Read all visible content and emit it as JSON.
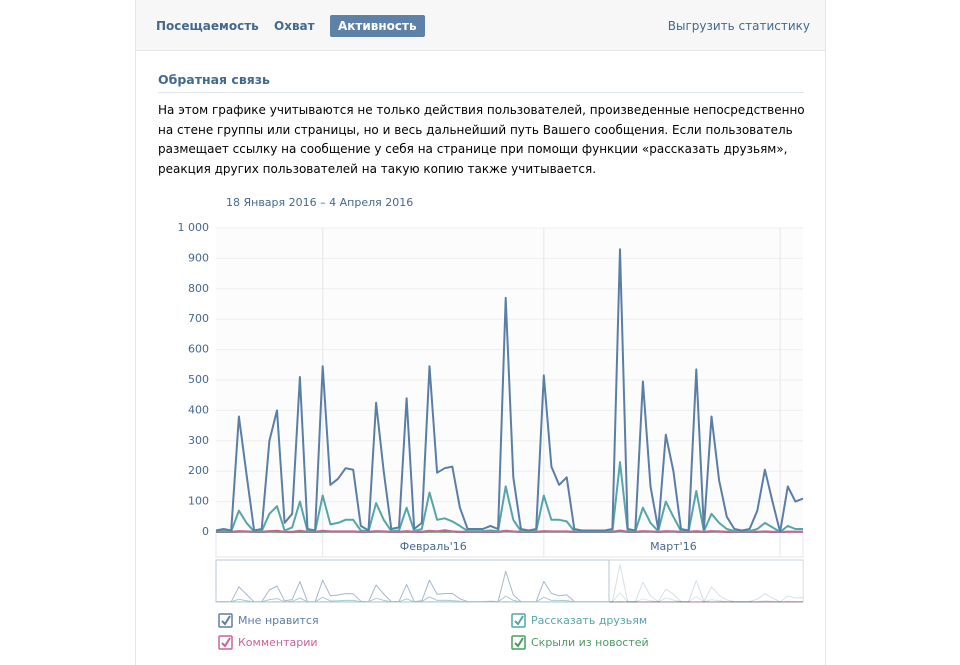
{
  "header": {
    "tabs": [
      "Посещаемость",
      "Охват",
      "Активность"
    ],
    "export": "Выгрузить статистику"
  },
  "section": {
    "title": "Обратная связь",
    "text": "На этом графике учитываются не только действия пользователей, произведенные непосредственно на стене группы или страницы, но и весь дальнейший путь Вашего сообщения. Если пользователь размещает ссылку на сообщение у себя на странице при помощи функции «рассказать друзьям», реакция других пользователей на такую копию также учитывается."
  },
  "chart_data": {
    "type": "line",
    "subtitle": "18 Января 2016 – 4 Апреля 2016",
    "categories": [
      null,
      null,
      null,
      null,
      null,
      null,
      null,
      null,
      null,
      null,
      null,
      null,
      null,
      null,
      "Февраль'16",
      null,
      null,
      null,
      null,
      null,
      null,
      null,
      null,
      null,
      null,
      null,
      null,
      null,
      null,
      null,
      null,
      null,
      null,
      null,
      null,
      null,
      null,
      null,
      null,
      null,
      null,
      null,
      null,
      "Март'16",
      null,
      null,
      null,
      null,
      null,
      null,
      null,
      null,
      null,
      null,
      null,
      null,
      null,
      null,
      null,
      null,
      null,
      null,
      null,
      null,
      null,
      null,
      null,
      null,
      null,
      null,
      null,
      null,
      null,
      null,
      null,
      null,
      null,
      null
    ],
    "ylim": [
      0,
      1000
    ],
    "yticks": [
      0,
      100,
      200,
      300,
      400,
      500,
      600,
      700,
      800,
      900,
      {
        "value": 1000,
        "label": "1 000"
      }
    ],
    "grid": true,
    "series": [
      {
        "name": "Мне нравится",
        "color": "#5b7ea6",
        "values": [
          5,
          10,
          5,
          380,
          190,
          5,
          10,
          300,
          400,
          30,
          60,
          510,
          10,
          5,
          545,
          155,
          175,
          210,
          205,
          20,
          5,
          425,
          200,
          10,
          15,
          440,
          10,
          30,
          545,
          195,
          210,
          215,
          80,
          10,
          10,
          10,
          20,
          10,
          770,
          180,
          10,
          5,
          10,
          515,
          215,
          155,
          180,
          10,
          5,
          5,
          5,
          5,
          10,
          930,
          10,
          5,
          495,
          150,
          10,
          320,
          200,
          10,
          5,
          535,
          10,
          380,
          170,
          50,
          10,
          5,
          10,
          70,
          205,
          100,
          0,
          150,
          100,
          110
        ]
      },
      {
        "name": "Рассказать друзьям",
        "color": "#56a5a8",
        "values": [
          2,
          3,
          2,
          70,
          30,
          2,
          3,
          60,
          85,
          5,
          15,
          100,
          3,
          2,
          120,
          25,
          30,
          40,
          40,
          5,
          2,
          95,
          40,
          3,
          5,
          80,
          3,
          10,
          130,
          40,
          45,
          35,
          20,
          3,
          3,
          3,
          5,
          3,
          150,
          40,
          3,
          2,
          3,
          120,
          40,
          40,
          35,
          3,
          2,
          2,
          2,
          2,
          3,
          230,
          3,
          2,
          80,
          30,
          3,
          100,
          50,
          3,
          2,
          135,
          3,
          60,
          30,
          10,
          3,
          2,
          3,
          10,
          30,
          15,
          0,
          20,
          10,
          10
        ]
      },
      {
        "name": "Комментарии",
        "color": "#c8639c",
        "values": [
          1,
          1,
          1,
          3,
          2,
          1,
          1,
          3,
          4,
          1,
          1,
          4,
          1,
          1,
          4,
          2,
          2,
          2,
          2,
          1,
          1,
          3,
          2,
          1,
          1,
          3,
          1,
          1,
          4,
          2,
          6,
          2,
          1,
          1,
          1,
          1,
          1,
          1,
          4,
          2,
          1,
          1,
          1,
          3,
          2,
          2,
          2,
          1,
          1,
          1,
          1,
          1,
          1,
          5,
          1,
          1,
          3,
          2,
          1,
          3,
          2,
          1,
          1,
          3,
          1,
          3,
          2,
          1,
          1,
          1,
          1,
          1,
          2,
          1,
          0,
          1,
          1,
          1
        ]
      },
      {
        "name": "Скрыли из новостей",
        "color": "#4b9b60",
        "values": [
          0,
          0,
          0,
          1,
          1,
          0,
          0,
          1,
          1,
          0,
          0,
          1,
          0,
          0,
          1,
          1,
          1,
          1,
          1,
          0,
          0,
          1,
          1,
          0,
          0,
          1,
          0,
          0,
          1,
          1,
          1,
          1,
          0,
          0,
          0,
          0,
          0,
          0,
          2,
          1,
          0,
          0,
          0,
          1,
          1,
          1,
          1,
          0,
          0,
          0,
          0,
          0,
          0,
          2,
          0,
          0,
          1,
          1,
          0,
          1,
          1,
          0,
          0,
          1,
          0,
          1,
          1,
          0,
          0,
          0,
          0,
          0,
          1,
          0,
          0,
          1,
          1,
          1
        ]
      }
    ]
  }
}
